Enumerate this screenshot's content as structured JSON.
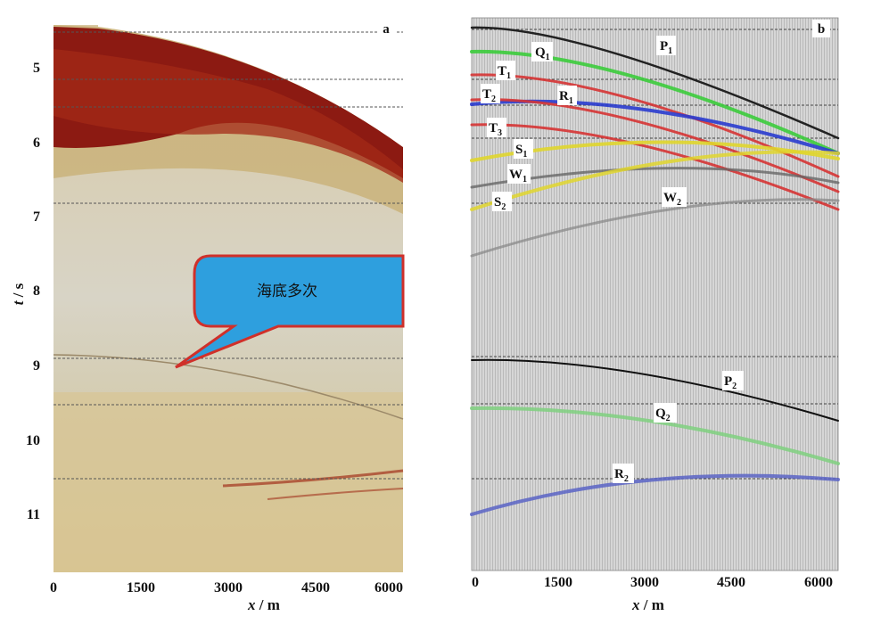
{
  "panel_a": {
    "letter": "a",
    "callout": "海底多次",
    "y_ticks": [
      "5",
      "6",
      "7",
      "8",
      "9",
      "10",
      "11"
    ],
    "x_ticks": [
      "0",
      "1500",
      "3000",
      "4500",
      "6000"
    ]
  },
  "panel_b": {
    "letter": "b",
    "x_ticks": [
      "0",
      "1500",
      "3000",
      "4500",
      "6000"
    ]
  },
  "axes": {
    "ylabel_var": "t",
    "ylabel_unit": "s",
    "xlabel_var": "x",
    "xlabel_unit": "m"
  },
  "curves": [
    {
      "key": "P1",
      "base": "P",
      "sub": "1",
      "color": "#222222"
    },
    {
      "key": "Q1",
      "base": "Q",
      "sub": "1",
      "color": "#3ccc3c"
    },
    {
      "key": "T1",
      "base": "T",
      "sub": "1",
      "color": "#d63434"
    },
    {
      "key": "T2",
      "base": "T",
      "sub": "2",
      "color": "#d63434"
    },
    {
      "key": "R1",
      "base": "R",
      "sub": "1",
      "color": "#2a3ccf"
    },
    {
      "key": "T3",
      "base": "T",
      "sub": "3",
      "color": "#d63434"
    },
    {
      "key": "S1",
      "base": "S",
      "sub": "1",
      "color": "#e0d62e"
    },
    {
      "key": "W1",
      "base": "W",
      "sub": "1",
      "color": "#666666"
    },
    {
      "key": "S2",
      "base": "S",
      "sub": "2",
      "color": "#e0d62e"
    },
    {
      "key": "W2",
      "base": "W",
      "sub": "2",
      "color": "#7a7a7a"
    },
    {
      "key": "P2",
      "base": "P",
      "sub": "2",
      "color": "#111111"
    },
    {
      "key": "Q2",
      "base": "Q",
      "sub": "2",
      "color": "#7fd07f"
    },
    {
      "key": "R2",
      "base": "R",
      "sub": "2",
      "color": "#5b64c6"
    }
  ]
}
